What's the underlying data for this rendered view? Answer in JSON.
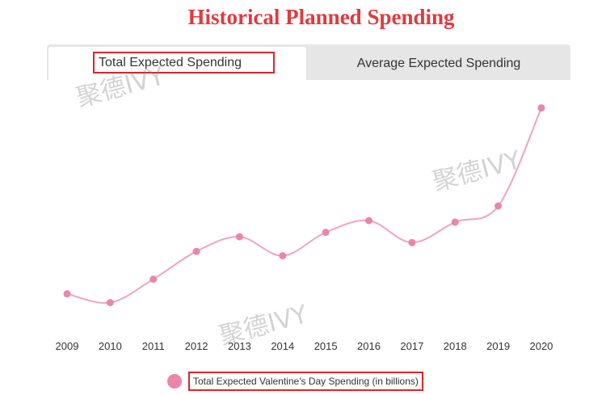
{
  "tabs": [
    {
      "label": "Total Expected Spending",
      "active": true
    },
    {
      "label": "Average Expected Spending",
      "active": false
    }
  ],
  "watermark": {
    "text": "聚德IVY"
  },
  "colors": {
    "title": "#e03a3e",
    "series_line": "#f2a3bf",
    "series_point": "#ec85aa",
    "annotation": "#d9262c",
    "tab_inactive_bg": "#e6e6e6",
    "axis_text": "#333333"
  },
  "chart_data": {
    "type": "line",
    "title": "Historical Planned Spending",
    "categories": [
      "2009",
      "2010",
      "2011",
      "2012",
      "2013",
      "2014",
      "2015",
      "2016",
      "2017",
      "2018",
      "2019",
      "2020"
    ],
    "series": [
      {
        "name": "Total Expected Valentine's Day Spending (in billions)",
        "values": [
          14.7,
          14.1,
          15.7,
          17.6,
          18.6,
          17.3,
          18.9,
          19.7,
          18.2,
          19.6,
          20.7,
          27.4
        ]
      }
    ],
    "xlabel": "",
    "ylabel": "",
    "ylim": [
      12.7,
      28.7
    ],
    "grid": false,
    "legend": "bottom-center"
  }
}
